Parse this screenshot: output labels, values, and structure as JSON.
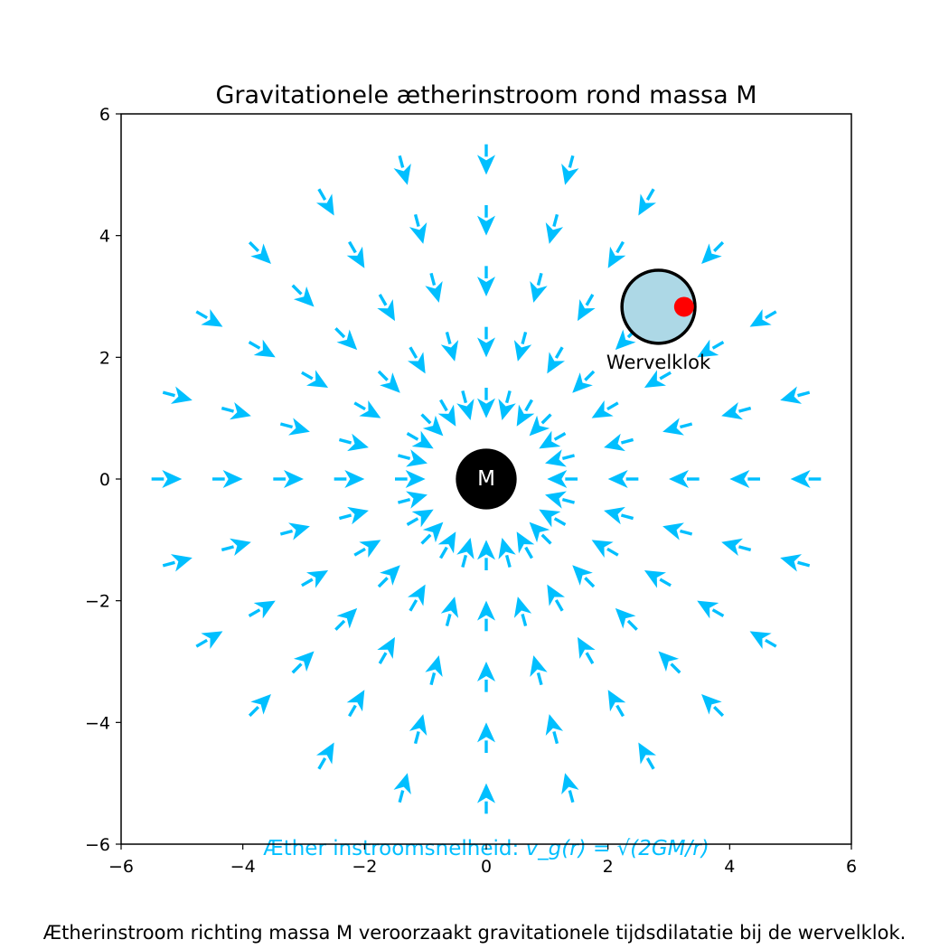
{
  "title": "Gravitationele ætherinstroom rond massa M",
  "caption": "Ætherinstroom richting massa M veroorzaakt gravitationele tijdsdilatatie bij de wervelklok.",
  "axes": {
    "xlim": [
      -6,
      6
    ],
    "ylim": [
      -6,
      6
    ],
    "xticks": [
      -6,
      -4,
      -2,
      0,
      2,
      4,
      6
    ],
    "yticks": [
      -6,
      -4,
      -2,
      0,
      2,
      4,
      6
    ],
    "xtick_labels": [
      "−6",
      "−4",
      "−2",
      "0",
      "2",
      "4",
      "6"
    ],
    "ytick_labels": [
      "−6",
      "−4",
      "−2",
      "0",
      "2",
      "4",
      "6"
    ],
    "grid": false
  },
  "mass": {
    "label": "M",
    "center": [
      0,
      0
    ],
    "radius": 0.5,
    "color": "#000000"
  },
  "vortex_clock": {
    "label": "Wervelklok",
    "center": [
      2.83,
      2.83
    ],
    "radius": 0.6,
    "fill_color": "#add8e6",
    "edge_color": "#000000",
    "marker_position": [
      3.25,
      2.83
    ],
    "marker_color": "#ff0000"
  },
  "flow": {
    "color": "#00bfff",
    "directions": 24,
    "arrow_radii": [
      1.0,
      2.0,
      3.0,
      4.0,
      5.0
    ],
    "arrow_length": 0.5,
    "direction": "inward"
  },
  "formula": {
    "label_prefix": "Æther instroomsnelheid: ",
    "expression": "v_g(r) = √(2GM/r)",
    "color": "#00bfff"
  }
}
